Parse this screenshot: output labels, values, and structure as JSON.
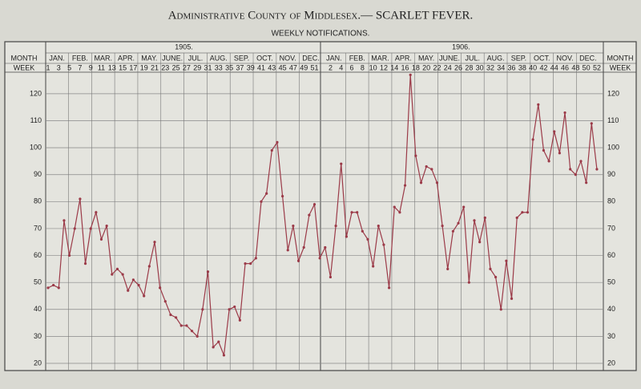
{
  "chart_data": {
    "type": "line",
    "title": "Administrative County of Middlesex.— SCARLET FEVER.",
    "subtitle": "WEEKLY NOTIFICATIONS.",
    "row_labels": {
      "month": "MONTH",
      "week": "WEEK"
    },
    "months": [
      "JAN.",
      "FEB.",
      "MAR.",
      "APR.",
      "MAY.",
      "JUNE.",
      "JUL.",
      "AUG.",
      "SEP.",
      "OCT.",
      "NOV.",
      "DEC."
    ],
    "color": "#9b3a48",
    "ylim": [
      20,
      128
    ],
    "yticks": [
      20,
      30,
      40,
      50,
      60,
      70,
      80,
      90,
      100,
      110,
      120
    ],
    "grid": true,
    "series": [
      {
        "name": "1905.",
        "week_labels": [
          1,
          3,
          5,
          7,
          9,
          11,
          13,
          15,
          17,
          19,
          21,
          23,
          25,
          27,
          29,
          31,
          33,
          35,
          37,
          39,
          41,
          43,
          45,
          47,
          49,
          51
        ],
        "values": [
          48,
          49,
          48,
          73,
          60,
          70,
          81,
          57,
          70,
          76,
          66,
          71,
          53,
          55,
          53,
          47,
          51,
          49,
          45,
          56,
          65,
          48,
          43,
          38,
          37,
          34,
          34,
          32,
          30,
          40,
          54,
          26,
          28,
          23,
          40,
          41,
          36,
          57,
          57,
          59,
          80,
          83,
          99,
          102,
          82,
          62,
          71,
          58,
          63,
          75,
          79,
          59
        ]
      },
      {
        "name": "1906.",
        "week_labels": [
          2,
          4,
          6,
          8,
          10,
          12,
          14,
          16,
          18,
          20,
          22,
          24,
          26,
          28,
          30,
          32,
          34,
          36,
          38,
          40,
          42,
          44,
          46,
          48,
          50,
          52
        ],
        "values": [
          63,
          52,
          71,
          94,
          67,
          76,
          76,
          69,
          66,
          56,
          71,
          64,
          48,
          78,
          76,
          86,
          127,
          97,
          87,
          93,
          92,
          87,
          71,
          55,
          69,
          72,
          78,
          50,
          73,
          65,
          74,
          55,
          52,
          40,
          58,
          44,
          74,
          76,
          76,
          103,
          116,
          99,
          95,
          106,
          98,
          113,
          92,
          90,
          95,
          87,
          109,
          92
        ]
      }
    ]
  }
}
